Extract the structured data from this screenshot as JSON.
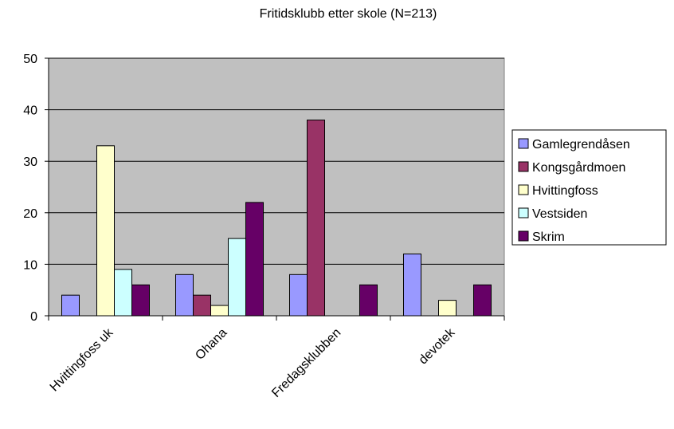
{
  "chart_data": {
    "type": "bar",
    "title": "Fritidsklubb etter skole (N=213)",
    "xlabel": "",
    "ylabel": "",
    "categories": [
      "Hvittingfoss uk",
      "Ohana",
      "Fredagsklubben",
      "devotek"
    ],
    "ylim": [
      0,
      50
    ],
    "yticks": [
      0,
      10,
      20,
      30,
      40,
      50
    ],
    "grid": true,
    "legend_position": "right",
    "plot_background": "#c0c0c0",
    "series": [
      {
        "name": "Gamlegrendåsen",
        "color": "#9999ff",
        "values": [
          4,
          8,
          8,
          12
        ]
      },
      {
        "name": "Kongsgårdmoen",
        "color": "#993366",
        "values": [
          0,
          4,
          38,
          0
        ]
      },
      {
        "name": "Hvittingfoss",
        "color": "#ffffcc",
        "values": [
          33,
          2,
          0,
          3
        ]
      },
      {
        "name": "Vestsiden",
        "color": "#ccffff",
        "values": [
          9,
          15,
          0,
          0
        ]
      },
      {
        "name": "Skrim",
        "color": "#660066",
        "values": [
          6,
          22,
          6,
          6
        ]
      }
    ]
  }
}
